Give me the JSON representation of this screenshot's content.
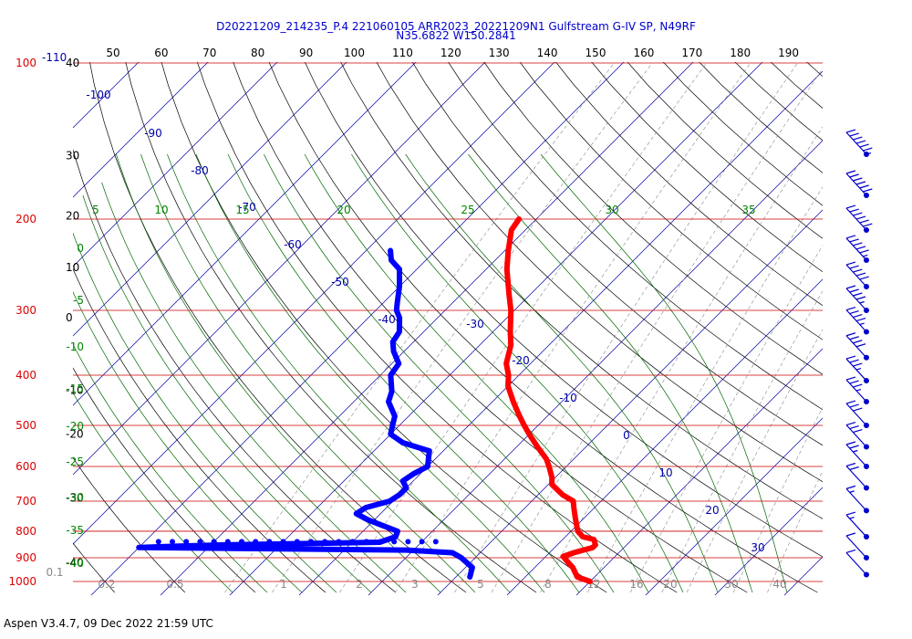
{
  "header": {
    "title_line1": "D20221209_214235_P.4 221060105 ARR2023_20221209N1 Gulfstream G-IV SP, N49RF",
    "title_line2": "N35.6822 W150.2841"
  },
  "footer": {
    "text": "Aspen V3.4.7, 09 Dec 2022  21:59 UTC"
  },
  "chart_data": {
    "type": "skew-t",
    "top_labels": [
      "50",
      "60",
      "70",
      "80",
      "90",
      "100",
      "110",
      "120",
      "130",
      "140",
      "150",
      "160",
      "170",
      "180",
      "190"
    ],
    "pressure_levels": [
      {
        "p": 100,
        "label": "100"
      },
      {
        "p": 200,
        "label": "200"
      },
      {
        "p": 300,
        "label": "300"
      },
      {
        "p": 400,
        "label": "400"
      },
      {
        "p": 500,
        "label": "500"
      },
      {
        "p": 600,
        "label": "600"
      },
      {
        "p": 700,
        "label": "700"
      },
      {
        "p": 800,
        "label": "800"
      },
      {
        "p": 900,
        "label": "900"
      },
      {
        "p": 1000,
        "label": "1000"
      }
    ],
    "top_left_label": "-110",
    "height_labels": [
      {
        "p": 100,
        "label": "40"
      },
      {
        "p": 151,
        "label": "30"
      },
      {
        "p": 197,
        "label": "20"
      },
      {
        "p": 248,
        "label": "10"
      },
      {
        "p": 310,
        "label": "0"
      },
      {
        "p": 428,
        "label": "-10"
      },
      {
        "p": 520,
        "label": "-20"
      },
      {
        "p": 690,
        "label": "-30"
      },
      {
        "p": 920,
        "label": "-40"
      }
    ],
    "isotherm_labels": [
      "-100",
      "-90",
      "-80",
      "-70",
      "-60",
      "-50",
      "-40",
      "-30",
      "-20",
      "-10",
      "0",
      "10",
      "20",
      "30"
    ],
    "theta_e_labels_top": [
      "5",
      "10",
      "15",
      "20",
      "25",
      "30",
      "35"
    ],
    "theta_e_labels_left": [
      "0",
      "-5",
      "-10",
      "-15",
      "-20",
      "-25",
      "-30",
      "-35",
      "-40"
    ],
    "mixing_ratio_labels": [
      "0.1",
      "0.2",
      "0.5",
      "1",
      "2",
      "3",
      "5",
      "8",
      "12",
      "16",
      "20",
      "30",
      "40"
    ],
    "temperature_profile": [
      [
        200,
        -52.5
      ],
      [
        210,
        -52.0
      ],
      [
        230,
        -49.5
      ],
      [
        250,
        -47.0
      ],
      [
        280,
        -43.0
      ],
      [
        300,
        -40.5
      ],
      [
        330,
        -37.5
      ],
      [
        350,
        -35.5
      ],
      [
        380,
        -33.5
      ],
      [
        400,
        -31.5
      ],
      [
        420,
        -30.0
      ],
      [
        450,
        -27.0
      ],
      [
        480,
        -24.0
      ],
      [
        500,
        -22.0
      ],
      [
        520,
        -20.0
      ],
      [
        550,
        -17.0
      ],
      [
        580,
        -14.0
      ],
      [
        600,
        -12.5
      ],
      [
        630,
        -10.5
      ],
      [
        650,
        -9.5
      ],
      [
        680,
        -6.5
      ],
      [
        700,
        -4.0
      ],
      [
        720,
        -3.0
      ],
      [
        750,
        -1.5
      ],
      [
        780,
        0.0
      ],
      [
        800,
        1.0
      ],
      [
        820,
        2.5
      ],
      [
        830,
        4.5
      ],
      [
        850,
        5.5
      ],
      [
        860,
        5.5
      ],
      [
        870,
        4.5
      ],
      [
        880,
        3.5
      ],
      [
        895,
        2.5
      ],
      [
        910,
        3.5
      ],
      [
        925,
        4.5
      ],
      [
        940,
        5.5
      ],
      [
        960,
        6.5
      ],
      [
        980,
        7.5
      ],
      [
        1000,
        10.0
      ]
    ],
    "dewpoint_profile": [
      [
        230,
        -66.5
      ],
      [
        240,
        -65.0
      ],
      [
        250,
        -62.5
      ],
      [
        270,
        -60.0
      ],
      [
        290,
        -58.0
      ],
      [
        300,
        -57.0
      ],
      [
        310,
        -55.5
      ],
      [
        330,
        -53.5
      ],
      [
        345,
        -53.0
      ],
      [
        360,
        -51.5
      ],
      [
        380,
        -49.0
      ],
      [
        400,
        -48.5
      ],
      [
        430,
        -46.0
      ],
      [
        450,
        -45.0
      ],
      [
        480,
        -42.0
      ],
      [
        500,
        -41.0
      ],
      [
        520,
        -40.0
      ],
      [
        540,
        -37.0
      ],
      [
        560,
        -32.0
      ],
      [
        580,
        -31.0
      ],
      [
        600,
        -30.0
      ],
      [
        620,
        -31.0
      ],
      [
        640,
        -31.5
      ],
      [
        660,
        -30.0
      ],
      [
        680,
        -30.0
      ],
      [
        700,
        -30.5
      ],
      [
        720,
        -33.0
      ],
      [
        740,
        -33.5
      ],
      [
        760,
        -31.0
      ],
      [
        780,
        -28.0
      ],
      [
        800,
        -25.0
      ],
      [
        820,
        -24.5
      ],
      [
        840,
        -26.0
      ],
      [
        850,
        -48.0
      ],
      [
        855,
        -55.0
      ],
      [
        860,
        -60.0
      ],
      [
        870,
        -21.0
      ],
      [
        880,
        -14.0
      ],
      [
        900,
        -12.0
      ],
      [
        920,
        -10.5
      ],
      [
        940,
        -9.0
      ],
      [
        960,
        -8.5
      ],
      [
        980,
        -8.0
      ]
    ],
    "dewpoint_scatter_row": [
      [
        838,
        -58.0
      ],
      [
        838,
        -56.0
      ],
      [
        838,
        -54.0
      ],
      [
        838,
        -52.0
      ],
      [
        838,
        -50.0
      ],
      [
        838,
        -48.0
      ],
      [
        838,
        -46.0
      ],
      [
        838,
        -44.0
      ],
      [
        838,
        -42.0
      ],
      [
        838,
        -40.0
      ],
      [
        838,
        -38.0
      ],
      [
        838,
        -36.0
      ],
      [
        838,
        -34.0
      ],
      [
        838,
        -32.0
      ],
      [
        838,
        -30.0
      ],
      [
        838,
        -28.0
      ],
      [
        838,
        -26.0
      ],
      [
        838,
        -24.0
      ],
      [
        838,
        -22.0
      ],
      [
        838,
        -20.0
      ],
      [
        838,
        -18.0
      ]
    ],
    "wind_barbs": [
      {
        "p": 150,
        "kt": 65
      },
      {
        "p": 180,
        "kt": 60
      },
      {
        "p": 210,
        "kt": 60
      },
      {
        "p": 240,
        "kt": 55
      },
      {
        "p": 270,
        "kt": 50
      },
      {
        "p": 300,
        "kt": 45
      },
      {
        "p": 330,
        "kt": 45
      },
      {
        "p": 370,
        "kt": 40
      },
      {
        "p": 410,
        "kt": 35
      },
      {
        "p": 450,
        "kt": 35
      },
      {
        "p": 500,
        "kt": 30
      },
      {
        "p": 550,
        "kt": 30
      },
      {
        "p": 600,
        "kt": 25
      },
      {
        "p": 660,
        "kt": 20
      },
      {
        "p": 730,
        "kt": 15
      },
      {
        "p": 820,
        "kt": 15
      },
      {
        "p": 900,
        "kt": 10
      },
      {
        "p": 970,
        "kt": 10
      }
    ],
    "colors": {
      "temperature": "#ff0000",
      "dewpoint": "#0000ff",
      "isobar": "#cc0000",
      "isotherm": "#0000aa",
      "dry_adiabat": "#000000",
      "moist_adiabat": "#006600",
      "mixing_ratio": "#888888",
      "pressure_label": "#dd0000",
      "theta_label": "#008800",
      "barb": "#0000cc"
    },
    "pressure_range": [
      100,
      1000
    ]
  }
}
